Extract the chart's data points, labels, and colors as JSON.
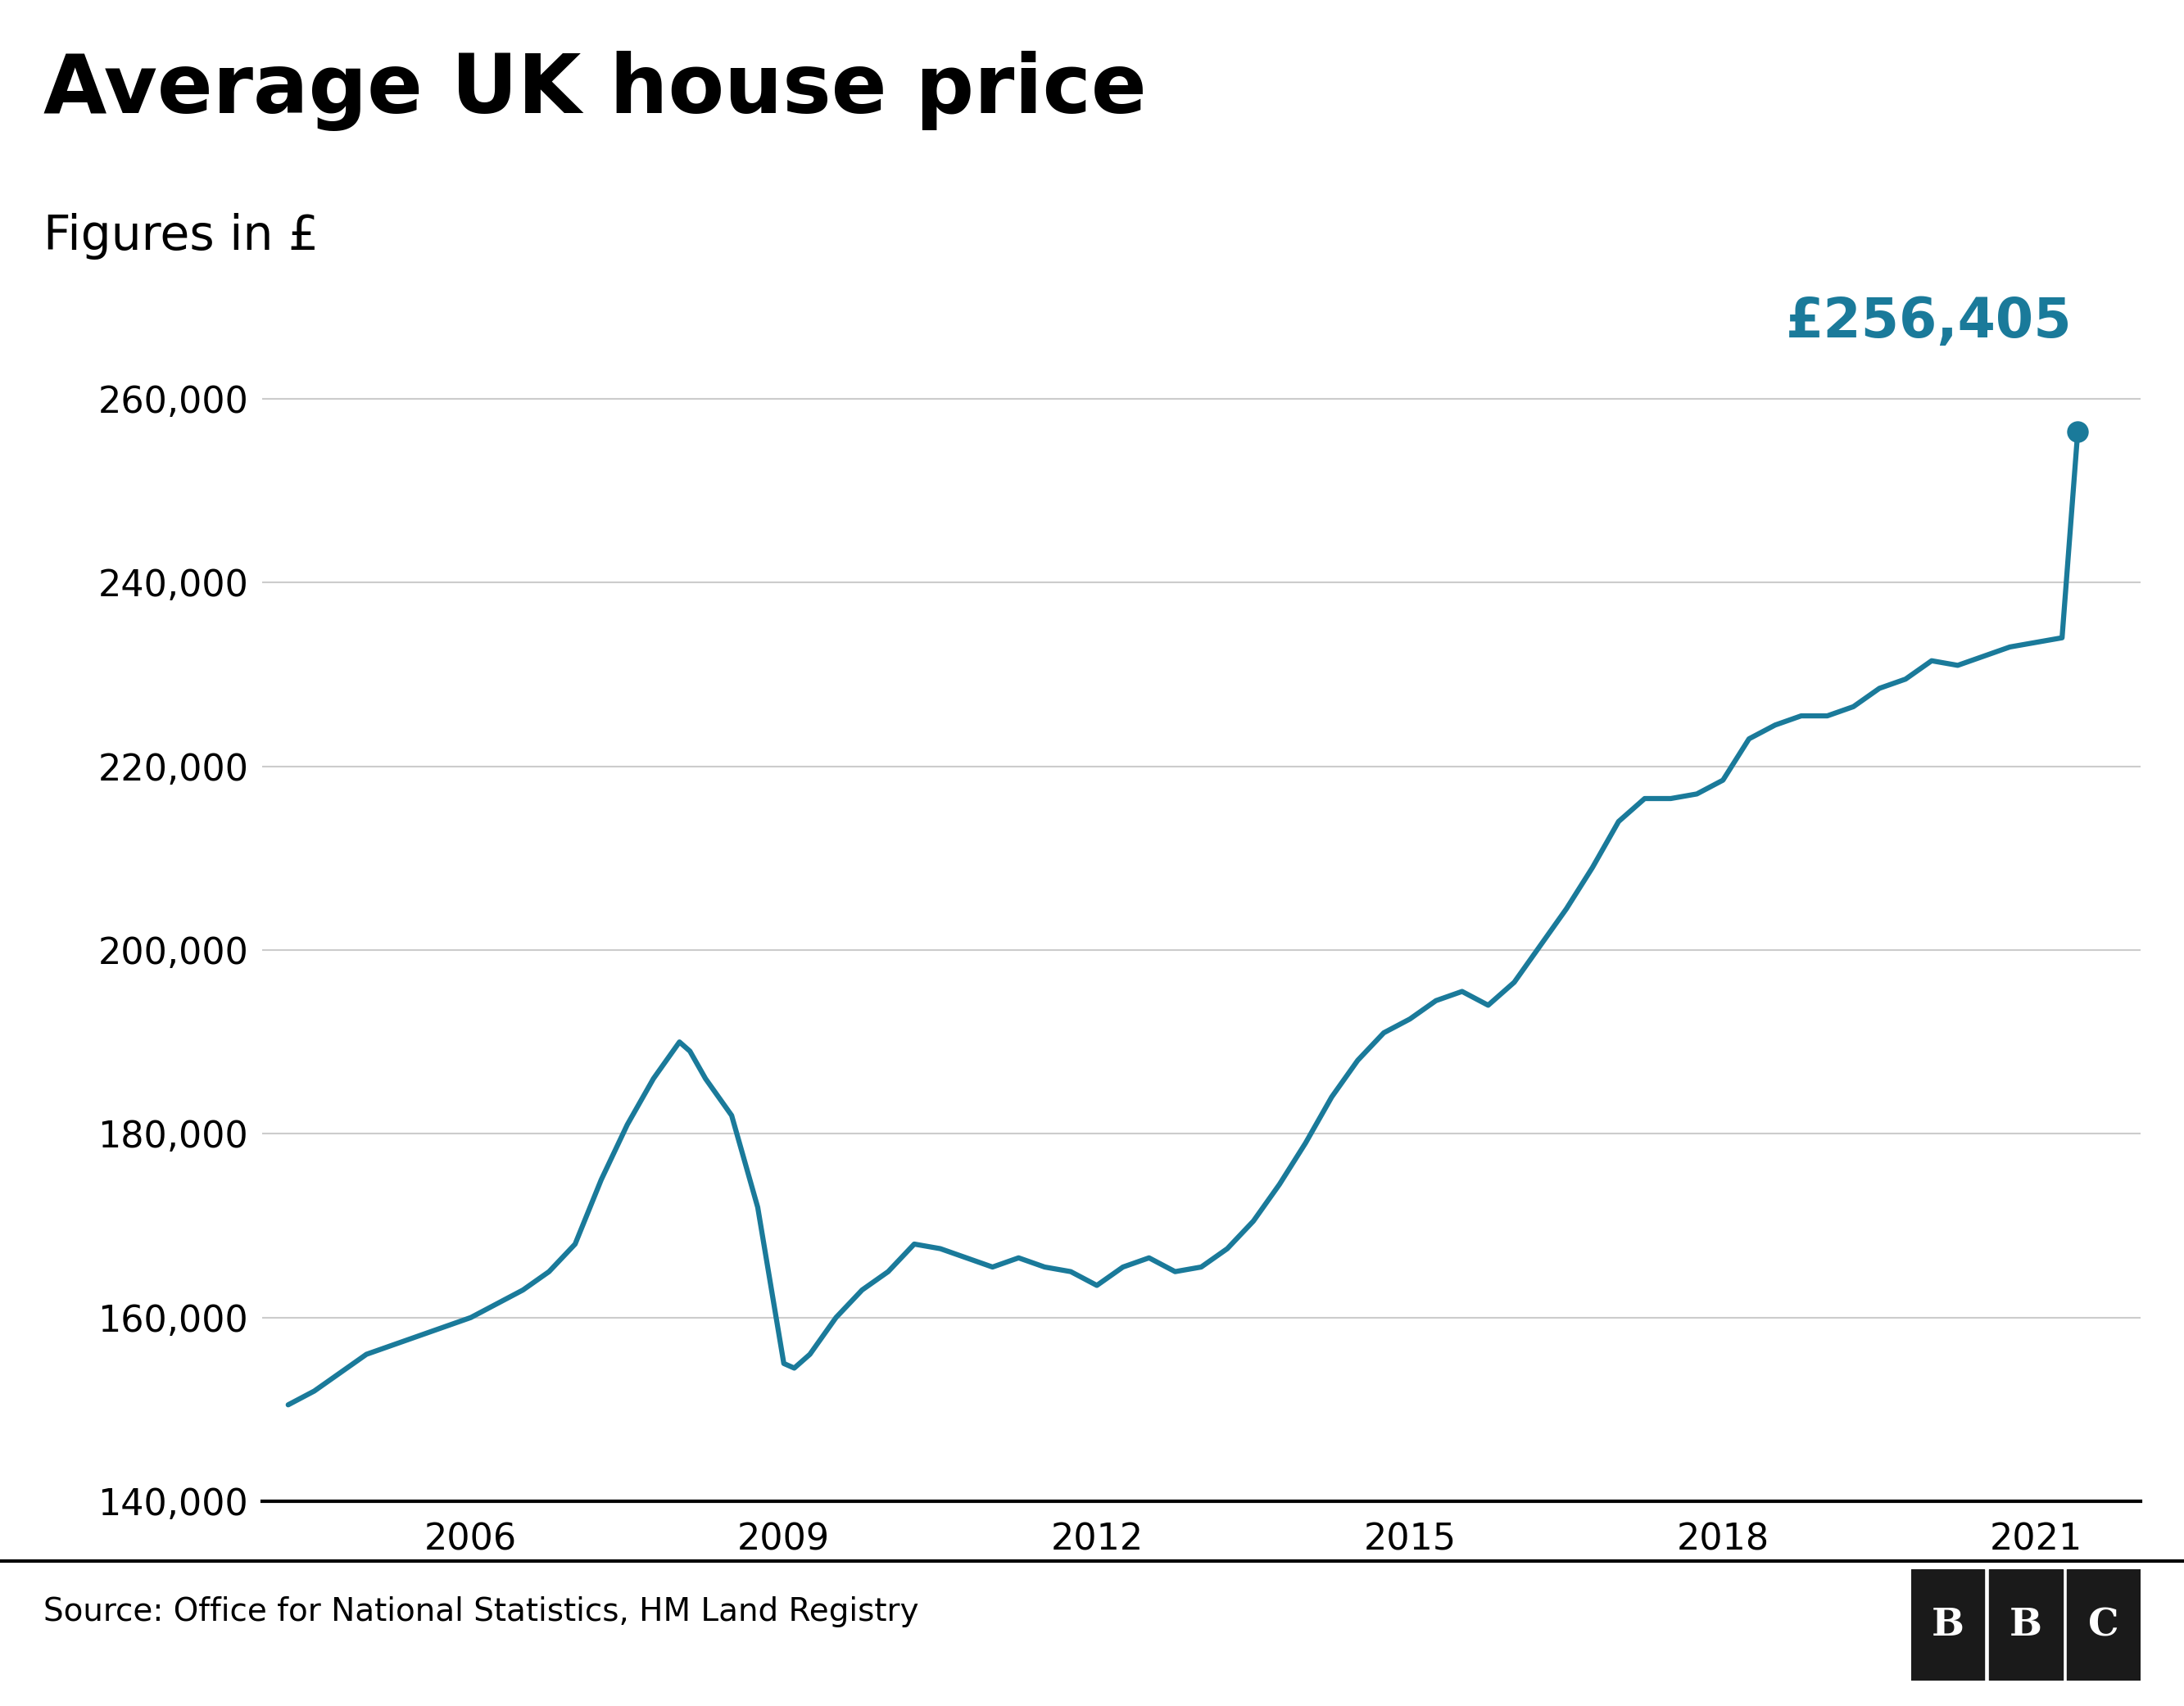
{
  "title": "Average UK house price",
  "subtitle": "Figures in £",
  "source": "Source: Office for National Statistics, HM Land Registry",
  "line_color": "#1a7a9a",
  "annotation_color": "#1a7a9a",
  "annotation_text": "£256,405",
  "background_color": "#ffffff",
  "ylim": [
    140000,
    270000
  ],
  "yticks": [
    140000,
    160000,
    180000,
    200000,
    220000,
    240000,
    260000
  ],
  "xticks": [
    2006,
    2009,
    2012,
    2015,
    2018,
    2021
  ],
  "xlim": [
    2004.0,
    2022.0
  ],
  "data": [
    [
      2004.25,
      150500
    ],
    [
      2004.5,
      152000
    ],
    [
      2004.75,
      154000
    ],
    [
      2005.0,
      156000
    ],
    [
      2005.25,
      157000
    ],
    [
      2005.5,
      158000
    ],
    [
      2005.75,
      159000
    ],
    [
      2006.0,
      160000
    ],
    [
      2006.25,
      161500
    ],
    [
      2006.5,
      163000
    ],
    [
      2006.75,
      165000
    ],
    [
      2007.0,
      168000
    ],
    [
      2007.25,
      175000
    ],
    [
      2007.5,
      181000
    ],
    [
      2007.75,
      186000
    ],
    [
      2008.0,
      190000
    ],
    [
      2008.1,
      189000
    ],
    [
      2008.25,
      186000
    ],
    [
      2008.5,
      182000
    ],
    [
      2008.75,
      172000
    ],
    [
      2009.0,
      155000
    ],
    [
      2009.1,
      154500
    ],
    [
      2009.25,
      156000
    ],
    [
      2009.5,
      160000
    ],
    [
      2009.75,
      163000
    ],
    [
      2010.0,
      165000
    ],
    [
      2010.25,
      168000
    ],
    [
      2010.5,
      167500
    ],
    [
      2010.75,
      166500
    ],
    [
      2011.0,
      165500
    ],
    [
      2011.25,
      166500
    ],
    [
      2011.5,
      165500
    ],
    [
      2011.75,
      165000
    ],
    [
      2012.0,
      163500
    ],
    [
      2012.25,
      165500
    ],
    [
      2012.5,
      166500
    ],
    [
      2012.75,
      165000
    ],
    [
      2013.0,
      165500
    ],
    [
      2013.25,
      167500
    ],
    [
      2013.5,
      170500
    ],
    [
      2013.75,
      174500
    ],
    [
      2014.0,
      179000
    ],
    [
      2014.25,
      184000
    ],
    [
      2014.5,
      188000
    ],
    [
      2014.75,
      191000
    ],
    [
      2015.0,
      192500
    ],
    [
      2015.25,
      194500
    ],
    [
      2015.5,
      195500
    ],
    [
      2015.75,
      194000
    ],
    [
      2016.0,
      196500
    ],
    [
      2016.25,
      200500
    ],
    [
      2016.5,
      204500
    ],
    [
      2016.75,
      209000
    ],
    [
      2017.0,
      214000
    ],
    [
      2017.25,
      216500
    ],
    [
      2017.5,
      216500
    ],
    [
      2017.75,
      217000
    ],
    [
      2018.0,
      218500
    ],
    [
      2018.25,
      223000
    ],
    [
      2018.5,
      224500
    ],
    [
      2018.75,
      225500
    ],
    [
      2019.0,
      225500
    ],
    [
      2019.25,
      226500
    ],
    [
      2019.5,
      228500
    ],
    [
      2019.75,
      229500
    ],
    [
      2020.0,
      231500
    ],
    [
      2020.25,
      231000
    ],
    [
      2020.5,
      232000
    ],
    [
      2020.75,
      233000
    ],
    [
      2021.0,
      233500
    ],
    [
      2021.25,
      234000
    ],
    [
      2021.4,
      256405
    ]
  ]
}
